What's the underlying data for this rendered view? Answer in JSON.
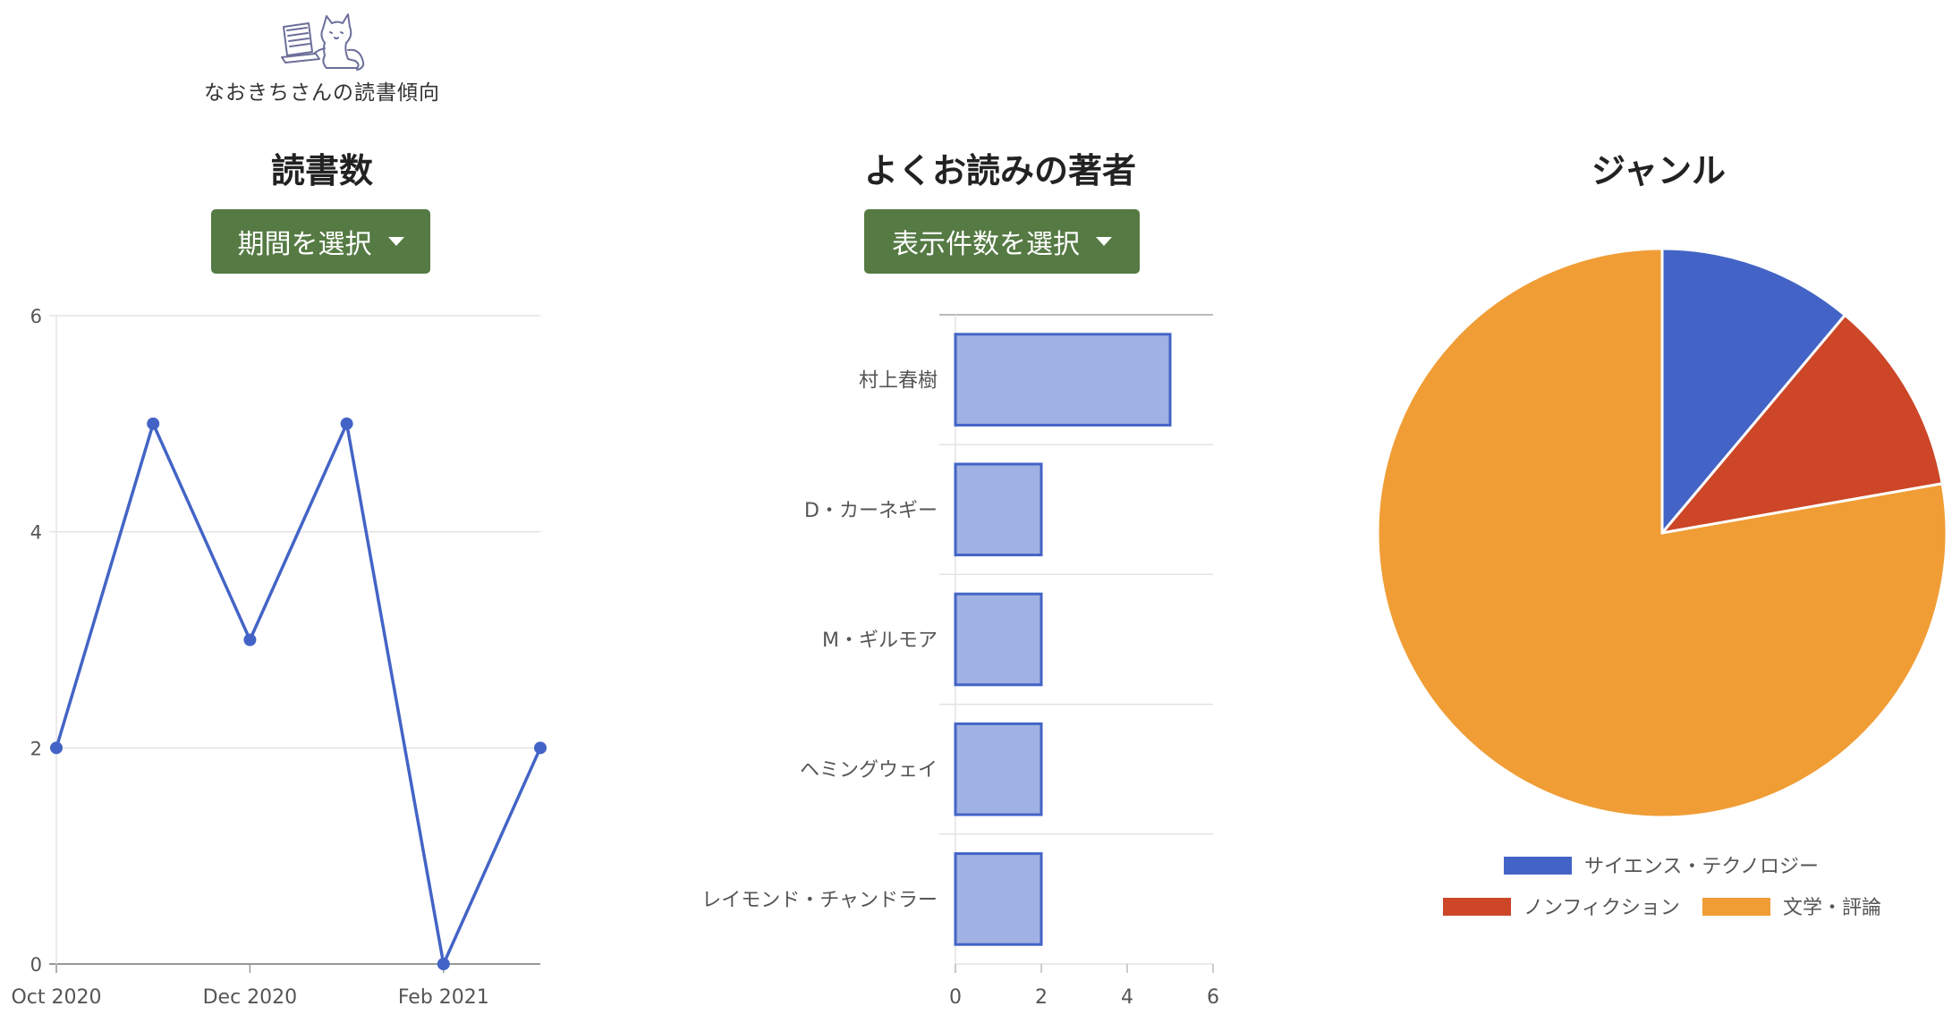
{
  "site": {
    "title": "なおきちさんの読書傾向"
  },
  "sections": {
    "reads": {
      "title": "読書数",
      "button": "期間を選択"
    },
    "authors": {
      "title": "よくお読みの著者",
      "button": "表示件数を選択"
    },
    "genre": {
      "title": "ジャンル"
    }
  },
  "colors": {
    "blue": "#4364c6",
    "red": "#cc4627",
    "orange": "#f09d36",
    "green": "#557a43"
  },
  "chart_data": [
    {
      "type": "line",
      "x": [
        "Oct 2020",
        "Nov 2020",
        "Dec 2020",
        "Jan 2021",
        "Feb 2021",
        "Mar 2021"
      ],
      "values": [
        2,
        5,
        3,
        5,
        0,
        2
      ],
      "tick_labels": [
        "Oct 2020",
        "Dec 2020",
        "Feb 2021"
      ],
      "yticks": [
        0,
        2,
        4,
        6
      ],
      "ylim": [
        0,
        6
      ],
      "grid": true,
      "color": "#4364c6"
    },
    {
      "type": "bar",
      "orientation": "horizontal",
      "categories": [
        "村上春樹",
        "D・カーネギー",
        "M・ギルモア",
        "ヘミングウェイ",
        "レイモンド・チャンドラー"
      ],
      "values": [
        5,
        2,
        2,
        2,
        2
      ],
      "xticks": [
        0,
        2,
        4,
        6
      ],
      "xlim": [
        0,
        6
      ],
      "grid": true,
      "color": "#4364c6"
    },
    {
      "type": "pie",
      "labels": [
        "サイエンス・テクノロジー",
        "ノンフィクション",
        "文学・評論"
      ],
      "values": [
        1,
        1,
        7
      ],
      "colors": [
        "#4364c6",
        "#cc4627",
        "#f09d36"
      ],
      "legend": "bottom"
    }
  ]
}
